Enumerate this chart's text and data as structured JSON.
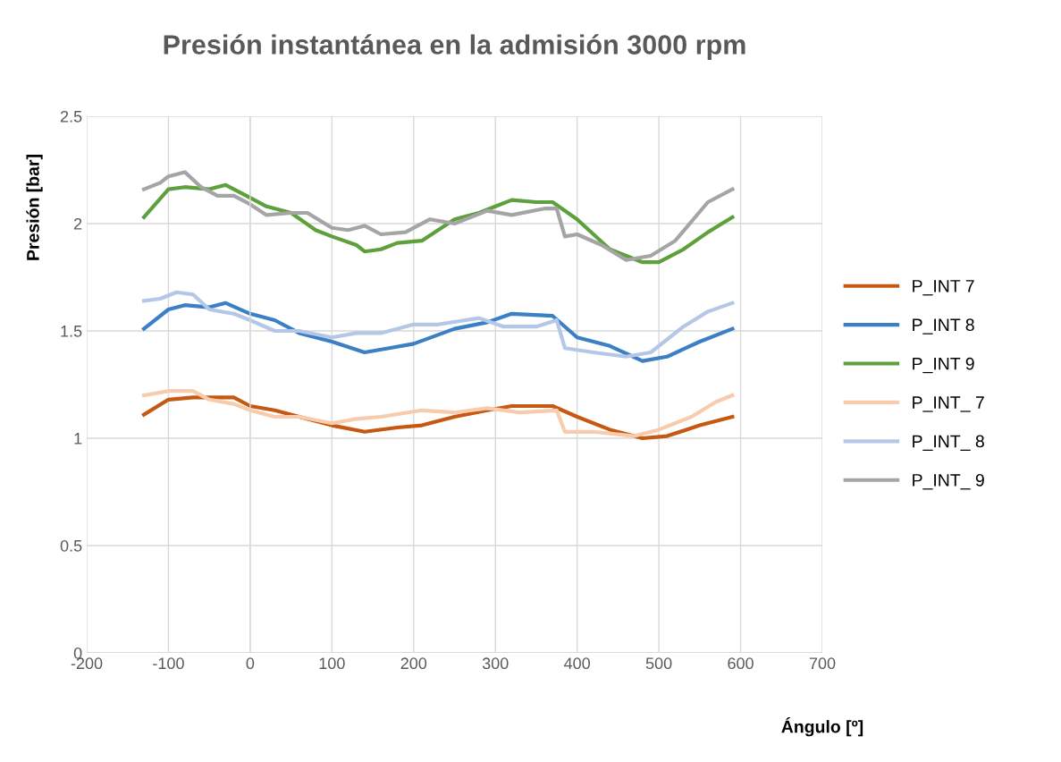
{
  "chart_data": {
    "type": "line",
    "title": "Presión instantánea en la admisión 3000 rpm",
    "xlabel": "Ángulo [º]",
    "ylabel": "Presión [bar]",
    "xlim": [
      -200,
      700
    ],
    "xticks": [
      -200,
      -100,
      0,
      100,
      200,
      300,
      400,
      500,
      600,
      700
    ],
    "ylim": [
      0,
      2.5
    ],
    "yticks": [
      0,
      0.5,
      1,
      1.5,
      2,
      2.5
    ],
    "grid": true,
    "legend": "right",
    "marker": "none",
    "line_style": "solid",
    "series": [
      {
        "name": "P_INT 7",
        "color": "#c65911",
        "x": [
          -130,
          -100,
          -70,
          -40,
          -20,
          0,
          30,
          60,
          100,
          140,
          180,
          210,
          250,
          290,
          320,
          370,
          400,
          440,
          480,
          510,
          550,
          590
        ],
        "values": [
          1.11,
          1.18,
          1.19,
          1.19,
          1.19,
          1.15,
          1.13,
          1.1,
          1.06,
          1.03,
          1.05,
          1.06,
          1.1,
          1.13,
          1.15,
          1.15,
          1.1,
          1.04,
          1.0,
          1.01,
          1.06,
          1.1
        ]
      },
      {
        "name": "P_INT 8",
        "color": "#3b7fc4",
        "x": [
          -130,
          -100,
          -80,
          -50,
          -30,
          0,
          30,
          60,
          100,
          140,
          170,
          200,
          250,
          290,
          320,
          370,
          400,
          440,
          480,
          510,
          550,
          590
        ],
        "values": [
          1.51,
          1.6,
          1.62,
          1.61,
          1.63,
          1.58,
          1.55,
          1.49,
          1.45,
          1.4,
          1.42,
          1.44,
          1.51,
          1.54,
          1.58,
          1.57,
          1.47,
          1.43,
          1.36,
          1.38,
          1.45,
          1.51
        ]
      },
      {
        "name": "P_INT 9",
        "color": "#5ea03c",
        "x": [
          -130,
          -100,
          -80,
          -50,
          -30,
          0,
          20,
          50,
          80,
          100,
          130,
          140,
          160,
          180,
          210,
          250,
          280,
          300,
          320,
          350,
          370,
          400,
          420,
          440,
          460,
          480,
          500,
          530,
          560,
          590
        ],
        "values": [
          2.03,
          2.16,
          2.17,
          2.16,
          2.18,
          2.12,
          2.08,
          2.05,
          1.97,
          1.94,
          1.9,
          1.87,
          1.88,
          1.91,
          1.92,
          2.02,
          2.05,
          2.08,
          2.11,
          2.1,
          2.1,
          2.02,
          1.95,
          1.88,
          1.85,
          1.82,
          1.82,
          1.88,
          1.96,
          2.03
        ]
      },
      {
        "name": "P_INT_ 7",
        "color": "#f8cbad",
        "x": [
          -130,
          -100,
          -70,
          -50,
          -20,
          0,
          30,
          60,
          100,
          130,
          160,
          210,
          250,
          290,
          330,
          375,
          385,
          420,
          470,
          500,
          540,
          570,
          590
        ],
        "values": [
          1.2,
          1.22,
          1.22,
          1.18,
          1.16,
          1.13,
          1.1,
          1.1,
          1.07,
          1.09,
          1.1,
          1.13,
          1.12,
          1.14,
          1.12,
          1.13,
          1.03,
          1.03,
          1.01,
          1.04,
          1.1,
          1.17,
          1.2
        ]
      },
      {
        "name": "P_INT_ 8",
        "color": "#b4c7e7",
        "x": [
          -130,
          -110,
          -90,
          -70,
          -50,
          -20,
          0,
          30,
          60,
          100,
          130,
          160,
          200,
          230,
          280,
          310,
          350,
          375,
          385,
          420,
          460,
          490,
          530,
          560,
          590
        ],
        "values": [
          1.64,
          1.65,
          1.68,
          1.67,
          1.6,
          1.58,
          1.55,
          1.5,
          1.5,
          1.47,
          1.49,
          1.49,
          1.53,
          1.53,
          1.56,
          1.52,
          1.52,
          1.55,
          1.42,
          1.4,
          1.38,
          1.4,
          1.52,
          1.59,
          1.63
        ]
      },
      {
        "name": "P_INT_ 9",
        "color": "#a5a5a5",
        "x": [
          -130,
          -110,
          -100,
          -80,
          -60,
          -40,
          -20,
          0,
          20,
          50,
          70,
          100,
          120,
          140,
          160,
          190,
          220,
          250,
          290,
          320,
          360,
          375,
          385,
          400,
          430,
          460,
          490,
          520,
          560,
          590
        ],
        "values": [
          2.16,
          2.19,
          2.22,
          2.24,
          2.17,
          2.13,
          2.13,
          2.09,
          2.04,
          2.05,
          2.05,
          1.98,
          1.97,
          1.99,
          1.95,
          1.96,
          2.02,
          2.0,
          2.06,
          2.04,
          2.07,
          2.07,
          1.94,
          1.95,
          1.9,
          1.83,
          1.85,
          1.92,
          2.1,
          2.16
        ]
      }
    ]
  }
}
